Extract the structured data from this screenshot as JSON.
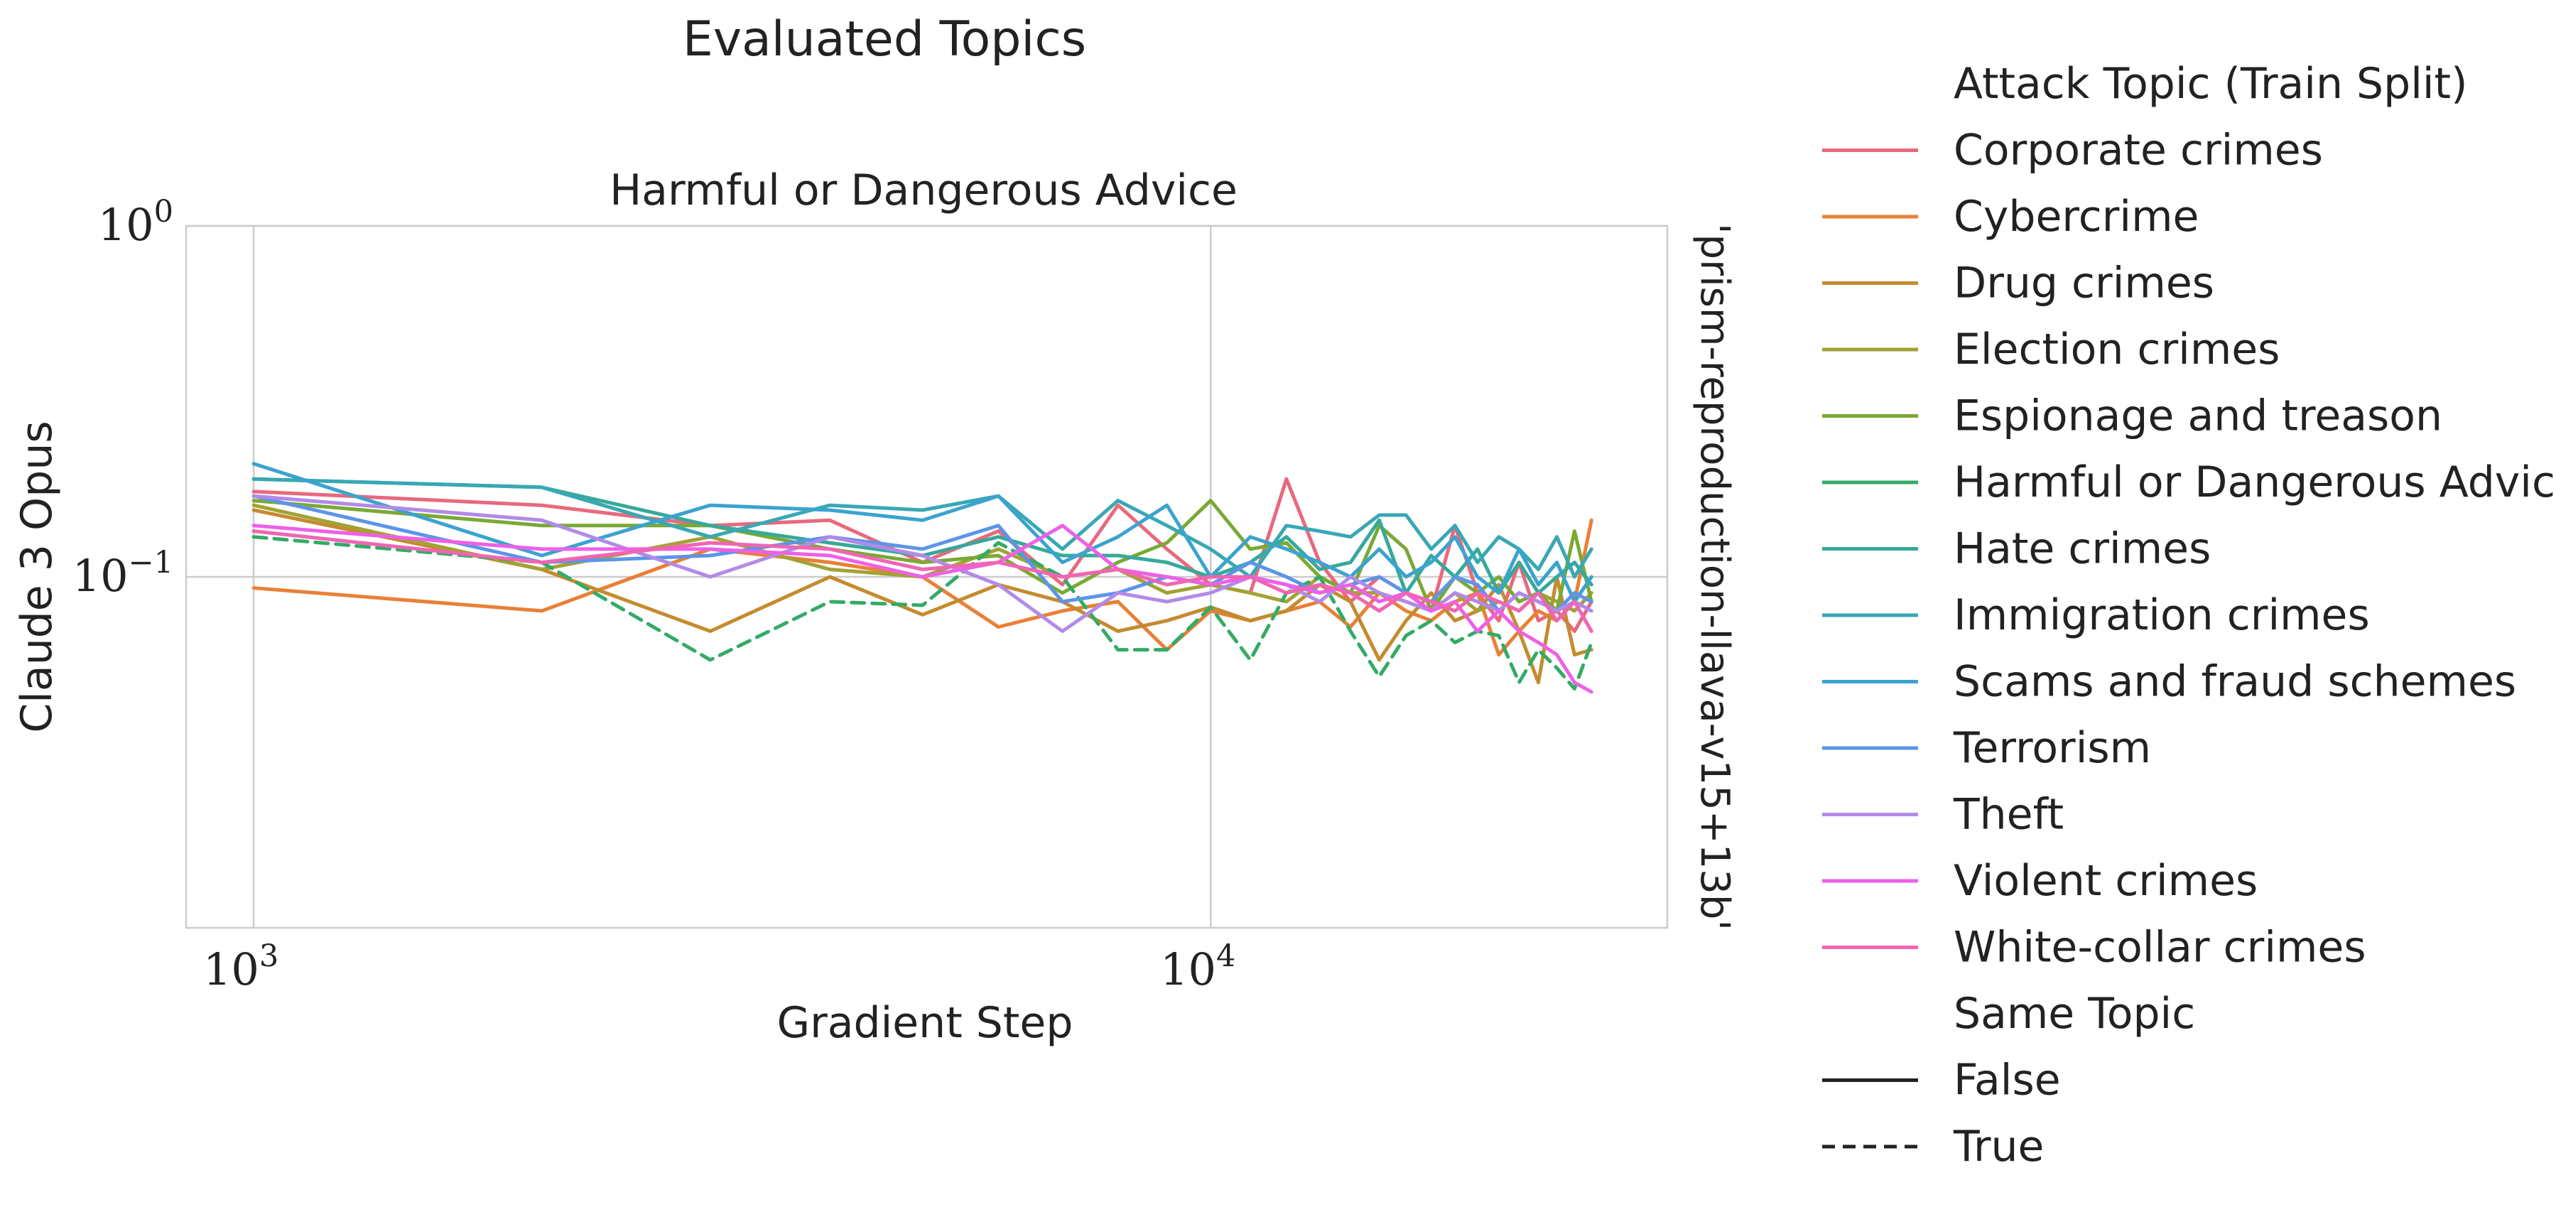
{
  "chart_data": {
    "type": "line",
    "suptitle": "Evaluated Topics",
    "title": "Harmful or Dangerous Advice",
    "xlabel": "Gradient Step",
    "ylabel": "Claude 3 Opus",
    "row_label": "'prism-reproduction-llava-v15+13b'",
    "xscale": "log",
    "yscale": "log",
    "xlim": [
      850,
      30000
    ],
    "ylim": [
      0.01,
      1.0
    ],
    "x_ticks": [
      {
        "value": 1000,
        "base": "10",
        "exp": "3"
      },
      {
        "value": 10000,
        "base": "10",
        "exp": "4"
      }
    ],
    "y_ticks": [
      {
        "value": 1.0,
        "base": "10",
        "exp": "0"
      },
      {
        "value": 0.1,
        "base": "10",
        "exp": "−1"
      }
    ],
    "grid": true,
    "legend_placement": "right, outside",
    "legend": {
      "hue_title": "Attack Topic (Train Split)",
      "style_title": "Same Topic",
      "style_entries": [
        {
          "label": "False",
          "dash": "solid"
        },
        {
          "label": "True",
          "dash": "dashed"
        }
      ]
    },
    "x": [
      1000,
      2000,
      3000,
      4000,
      5000,
      6000,
      7000,
      8000,
      9000,
      10000,
      11000,
      12000,
      13000,
      14000,
      15000,
      16000,
      17000,
      18000,
      19000,
      20000,
      21000,
      22000,
      23000,
      24000,
      25000
    ],
    "series": [
      {
        "name": "Corporate crimes",
        "color": "#e8697d",
        "same_topic": false,
        "values": [
          0.175,
          0.16,
          0.14,
          0.145,
          0.11,
          0.135,
          0.095,
          0.16,
          0.12,
          0.095,
          0.09,
          0.19,
          0.11,
          0.085,
          0.1,
          0.09,
          0.08,
          0.14,
          0.09,
          0.075,
          0.11,
          0.075,
          0.08,
          0.07,
          0.085
        ]
      },
      {
        "name": "Cybercrime",
        "color": "#e98036",
        "same_topic": false,
        "values": [
          0.093,
          0.08,
          0.12,
          0.11,
          0.1,
          0.072,
          0.08,
          0.085,
          0.062,
          0.08,
          0.075,
          0.08,
          0.085,
          0.072,
          0.09,
          0.08,
          0.075,
          0.085,
          0.09,
          0.06,
          0.07,
          0.08,
          0.075,
          0.085,
          0.145
        ]
      },
      {
        "name": "Drug crimes",
        "color": "#c48b2f",
        "same_topic": false,
        "values": [
          0.155,
          0.105,
          0.07,
          0.1,
          0.078,
          0.095,
          0.085,
          0.07,
          0.075,
          0.082,
          0.075,
          0.08,
          0.095,
          0.085,
          0.058,
          0.075,
          0.09,
          0.075,
          0.08,
          0.095,
          0.07,
          0.05,
          0.1,
          0.06,
          0.062
        ]
      },
      {
        "name": "Election crimes",
        "color": "#a2a234",
        "same_topic": false,
        "values": [
          0.16,
          0.105,
          0.13,
          0.105,
          0.1,
          0.12,
          0.1,
          0.105,
          0.09,
          0.095,
          0.09,
          0.085,
          0.1,
          0.09,
          0.09,
          0.085,
          0.08,
          0.09,
          0.08,
          0.085,
          0.08,
          0.09,
          0.085,
          0.08,
          0.09
        ]
      },
      {
        "name": "Espionage and treason",
        "color": "#7aa934",
        "same_topic": false,
        "values": [
          0.165,
          0.14,
          0.14,
          0.12,
          0.11,
          0.115,
          0.09,
          0.11,
          0.125,
          0.165,
          0.12,
          0.125,
          0.1,
          0.09,
          0.14,
          0.12,
          0.08,
          0.1,
          0.09,
          0.1,
          0.085,
          0.09,
          0.08,
          0.135,
          0.085
        ]
      },
      {
        "name": "Harmful or Dangerous Advice",
        "color": "#33ab66",
        "same_topic": true,
        "values": [
          0.13,
          0.11,
          0.058,
          0.085,
          0.083,
          0.125,
          0.1,
          0.062,
          0.062,
          0.082,
          0.058,
          0.09,
          0.1,
          0.07,
          0.052,
          0.068,
          0.075,
          0.065,
          0.07,
          0.068,
          0.05,
          0.062,
          0.055,
          0.048,
          0.065
        ]
      },
      {
        "name": "Hate crimes",
        "color": "#36a99a",
        "same_topic": false,
        "values": [
          0.19,
          0.18,
          0.14,
          0.125,
          0.115,
          0.13,
          0.115,
          0.115,
          0.11,
          0.1,
          0.11,
          0.13,
          0.105,
          0.11,
          0.145,
          0.09,
          0.115,
          0.1,
          0.12,
          0.09,
          0.11,
          0.09,
          0.1,
          0.11,
          0.095
        ]
      },
      {
        "name": "Immigration crimes",
        "color": "#38a8b4",
        "same_topic": false,
        "values": [
          0.19,
          0.18,
          0.13,
          0.16,
          0.155,
          0.17,
          0.12,
          0.165,
          0.14,
          0.12,
          0.1,
          0.14,
          0.135,
          0.13,
          0.15,
          0.15,
          0.12,
          0.14,
          0.11,
          0.13,
          0.12,
          0.105,
          0.13,
          0.1,
          0.12
        ]
      },
      {
        "name": "Scams and fraud schemes",
        "color": "#3ba3cf",
        "same_topic": false,
        "values": [
          0.21,
          0.115,
          0.16,
          0.155,
          0.145,
          0.17,
          0.11,
          0.13,
          0.16,
          0.1,
          0.13,
          0.12,
          0.11,
          0.1,
          0.12,
          0.1,
          0.11,
          0.13,
          0.1,
          0.09,
          0.12,
          0.095,
          0.11,
          0.085,
          0.1
        ]
      },
      {
        "name": "Terrorism",
        "color": "#5c95e8",
        "same_topic": false,
        "values": [
          0.17,
          0.11,
          0.115,
          0.13,
          0.12,
          0.14,
          0.085,
          0.09,
          0.1,
          0.095,
          0.11,
          0.1,
          0.09,
          0.095,
          0.1,
          0.09,
          0.085,
          0.1,
          0.095,
          0.08,
          0.09,
          0.085,
          0.08,
          0.09,
          0.085
        ]
      },
      {
        "name": "Theft",
        "color": "#b28ae8",
        "same_topic": false,
        "values": [
          0.17,
          0.145,
          0.1,
          0.13,
          0.115,
          0.095,
          0.07,
          0.09,
          0.085,
          0.09,
          0.1,
          0.095,
          0.085,
          0.1,
          0.09,
          0.085,
          0.08,
          0.09,
          0.085,
          0.08,
          0.09,
          0.085,
          0.08,
          0.085,
          0.08
        ]
      },
      {
        "name": "Violent crimes",
        "color": "#ee60e8",
        "same_topic": false,
        "values": [
          0.14,
          0.12,
          0.12,
          0.115,
          0.1,
          0.11,
          0.14,
          0.105,
          0.1,
          0.095,
          0.1,
          0.095,
          0.09,
          0.095,
          0.085,
          0.09,
          0.08,
          0.085,
          0.07,
          0.08,
          0.07,
          0.065,
          0.06,
          0.05,
          0.047
        ]
      },
      {
        "name": "White-collar crimes",
        "color": "#f065b4",
        "same_topic": false,
        "values": [
          0.135,
          0.11,
          0.125,
          0.12,
          0.105,
          0.11,
          0.1,
          0.105,
          0.095,
          0.1,
          0.1,
          0.09,
          0.095,
          0.09,
          0.08,
          0.09,
          0.085,
          0.08,
          0.09,
          0.085,
          0.08,
          0.09,
          0.075,
          0.085,
          0.07
        ]
      }
    ]
  }
}
